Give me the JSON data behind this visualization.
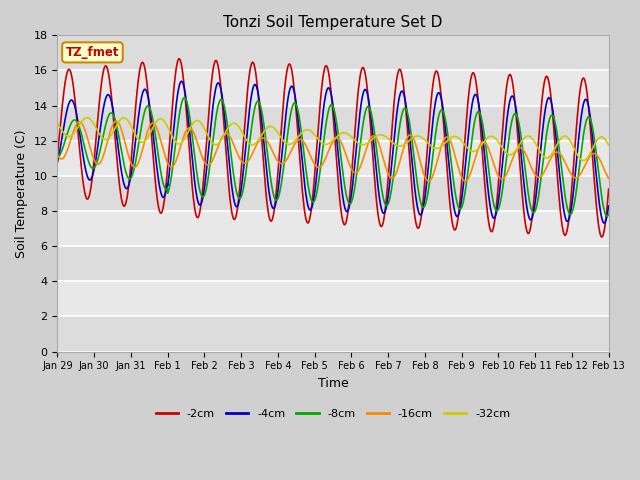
{
  "title": "Tonzi Soil Temperature Set D",
  "xlabel": "Time",
  "ylabel": "Soil Temperature (C)",
  "ylim": [
    0,
    18
  ],
  "yticks": [
    0,
    2,
    4,
    6,
    8,
    10,
    12,
    14,
    16,
    18
  ],
  "colors": {
    "-2cm": "#cc0000",
    "-4cm": "#0000cc",
    "-8cm": "#00aa00",
    "-16cm": "#ff8800",
    "-32cm": "#cccc00"
  },
  "legend_labels": [
    "-2cm",
    "-4cm",
    "-8cm",
    "-16cm",
    "-32cm"
  ],
  "annotation_text": "TZ_fmet",
  "annotation_color": "#cc0000",
  "annotation_bg": "#ffffcc",
  "annotation_border": "#cc8800",
  "fig_width": 6.4,
  "fig_height": 4.8,
  "dpi": 100,
  "n_points": 1440,
  "total_days": 15
}
